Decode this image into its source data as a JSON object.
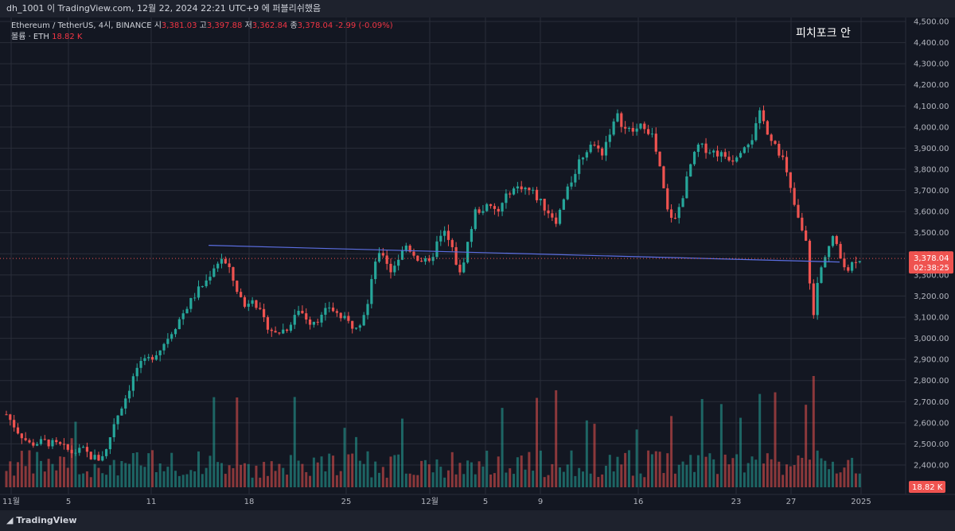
{
  "header": {
    "publish_line": "dh_1001 이 TradingView.com, 12월 22, 2024 22:21 UTC+9 에 퍼블리쉬했음"
  },
  "legend": {
    "symbol": "Ethereum / TetherUS, 4시, BINANCE",
    "o_label": "시",
    "o": "3,381.03",
    "h_label": "고",
    "h": "3,397.88",
    "l_label": "저",
    "l": "3,362.84",
    "c_label": "종",
    "c": "3,378.04",
    "change": "-2.99 (-0.09%)",
    "volume_label": "볼륨 · ETH",
    "volume": "18.82 K"
  },
  "annotation": "피치포크 안",
  "footer": {
    "brand": "TradingView"
  },
  "colors": {
    "up": "#26a69a",
    "down": "#ef5350",
    "line": "#5b6ee1",
    "bg": "#131722"
  },
  "chart_data": {
    "type": "candlestick",
    "interval": "4h",
    "y_ticks": [
      "4,500.00",
      "4,400.00",
      "4,300.00",
      "4,200.00",
      "4,100.00",
      "4,000.00",
      "3,900.00",
      "3,800.00",
      "3,700.00",
      "3,600.00",
      "3,500.00",
      "3,400.00",
      "3,300.00",
      "3,200.00",
      "3,100.00",
      "3,000.00",
      "2,900.00",
      "2,800.00",
      "2,700.00",
      "2,600.00",
      "2,500.00",
      "2,400.00"
    ],
    "x_ticks": [
      "11월",
      "5",
      "11",
      "18",
      "25",
      "12월",
      "5",
      "9",
      "16",
      "23",
      "27",
      "2025"
    ],
    "ylim": [
      2340,
      4550
    ],
    "last_price": "3,378.04",
    "countdown": "02:38:25",
    "last_volume": "18.82 K",
    "series_path": [
      [
        0,
        2640
      ],
      [
        3,
        2560
      ],
      [
        6,
        2500
      ],
      [
        10,
        2510
      ],
      [
        14,
        2490
      ],
      [
        17,
        2460
      ],
      [
        20,
        2470
      ],
      [
        22,
        2440
      ],
      [
        24,
        2430
      ],
      [
        26,
        2470
      ],
      [
        28,
        2600
      ],
      [
        31,
        2720
      ],
      [
        34,
        2860
      ],
      [
        37,
        2900
      ],
      [
        40,
        2950
      ],
      [
        44,
        3060
      ],
      [
        47,
        3150
      ],
      [
        50,
        3230
      ],
      [
        52,
        3270
      ],
      [
        54,
        3340
      ],
      [
        56,
        3380
      ],
      [
        58,
        3320
      ],
      [
        60,
        3230
      ],
      [
        62,
        3150
      ],
      [
        64,
        3200
      ],
      [
        67,
        3080
      ],
      [
        70,
        3020
      ],
      [
        73,
        3050
      ],
      [
        76,
        3140
      ],
      [
        79,
        3080
      ],
      [
        82,
        3100
      ],
      [
        84,
        3150
      ],
      [
        87,
        3100
      ],
      [
        90,
        3060
      ],
      [
        92,
        3080
      ],
      [
        94,
        3160
      ],
      [
        96,
        3370
      ],
      [
        98,
        3400
      ],
      [
        100,
        3320
      ],
      [
        102,
        3380
      ],
      [
        104,
        3440
      ],
      [
        107,
        3380
      ],
      [
        110,
        3350
      ],
      [
        112,
        3450
      ],
      [
        114,
        3500
      ],
      [
        116,
        3420
      ],
      [
        118,
        3300
      ],
      [
        120,
        3450
      ],
      [
        122,
        3600
      ],
      [
        125,
        3620
      ],
      [
        128,
        3600
      ],
      [
        131,
        3700
      ],
      [
        134,
        3720
      ],
      [
        137,
        3690
      ],
      [
        140,
        3620
      ],
      [
        143,
        3560
      ],
      [
        146,
        3700
      ],
      [
        149,
        3840
      ],
      [
        152,
        3920
      ],
      [
        155,
        3880
      ],
      [
        157,
        3980
      ],
      [
        159,
        4050
      ],
      [
        161,
        3990
      ],
      [
        163,
        3980
      ],
      [
        166,
        4010
      ],
      [
        168,
        3960
      ],
      [
        170,
        3800
      ],
      [
        172,
        3600
      ],
      [
        174,
        3560
      ],
      [
        176,
        3680
      ],
      [
        178,
        3820
      ],
      [
        180,
        3910
      ],
      [
        183,
        3890
      ],
      [
        186,
        3870
      ],
      [
        189,
        3850
      ],
      [
        192,
        3920
      ],
      [
        194,
        3950
      ],
      [
        196,
        4060
      ],
      [
        198,
        3980
      ],
      [
        200,
        3920
      ],
      [
        202,
        3850
      ],
      [
        204,
        3700
      ],
      [
        206,
        3560
      ],
      [
        208,
        3450
      ],
      [
        210,
        3100
      ],
      [
        211,
        3260
      ],
      [
        213,
        3400
      ],
      [
        215,
        3480
      ],
      [
        217,
        3380
      ],
      [
        219,
        3330
      ],
      [
        221,
        3378
      ]
    ],
    "pitchfork_line": [
      [
        52,
        3440
      ],
      [
        253,
        3361
      ]
    ]
  }
}
